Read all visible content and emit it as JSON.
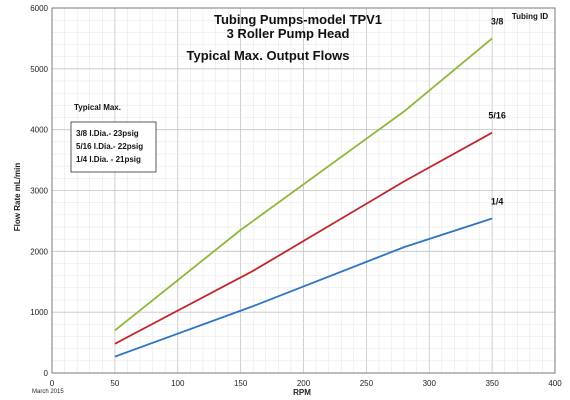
{
  "chart_data": {
    "type": "line",
    "title": "Tubing Pumps-model TPV1",
    "subtitle_line2": "3 Roller Pump Head",
    "subtitle_line3": "Typical Max. Output Flows",
    "xlabel": "RPM",
    "ylabel": "Flow Rate mL/min",
    "xlim": [
      0,
      400
    ],
    "ylim": [
      0,
      6000
    ],
    "xticks": [
      0,
      50,
      100,
      150,
      200,
      250,
      300,
      350,
      400
    ],
    "yticks": [
      0,
      1000,
      2000,
      3000,
      4000,
      5000,
      6000
    ],
    "grid": true,
    "legend_title": "Tubing ID",
    "date_note": "March 2015",
    "annotation": {
      "heading": "Typical Max.",
      "lines": [
        "3/8  I.Dia.- 23psig",
        "5/16 I.Dia.- 22psig",
        "1/4   I.Dia. - 21psig"
      ]
    },
    "series": [
      {
        "name": "3/8",
        "color": "#8db83a",
        "x": [
          50,
          150,
          280,
          350
        ],
        "y": [
          700,
          2350,
          4300,
          5500
        ]
      },
      {
        "name": "5/16",
        "color": "#c0272d",
        "x": [
          50,
          160,
          280,
          350
        ],
        "y": [
          480,
          1680,
          3150,
          3950
        ]
      },
      {
        "name": "1/4",
        "color": "#2e75c2",
        "x": [
          50,
          160,
          280,
          350
        ],
        "y": [
          270,
          1100,
          2070,
          2540
        ]
      }
    ]
  }
}
